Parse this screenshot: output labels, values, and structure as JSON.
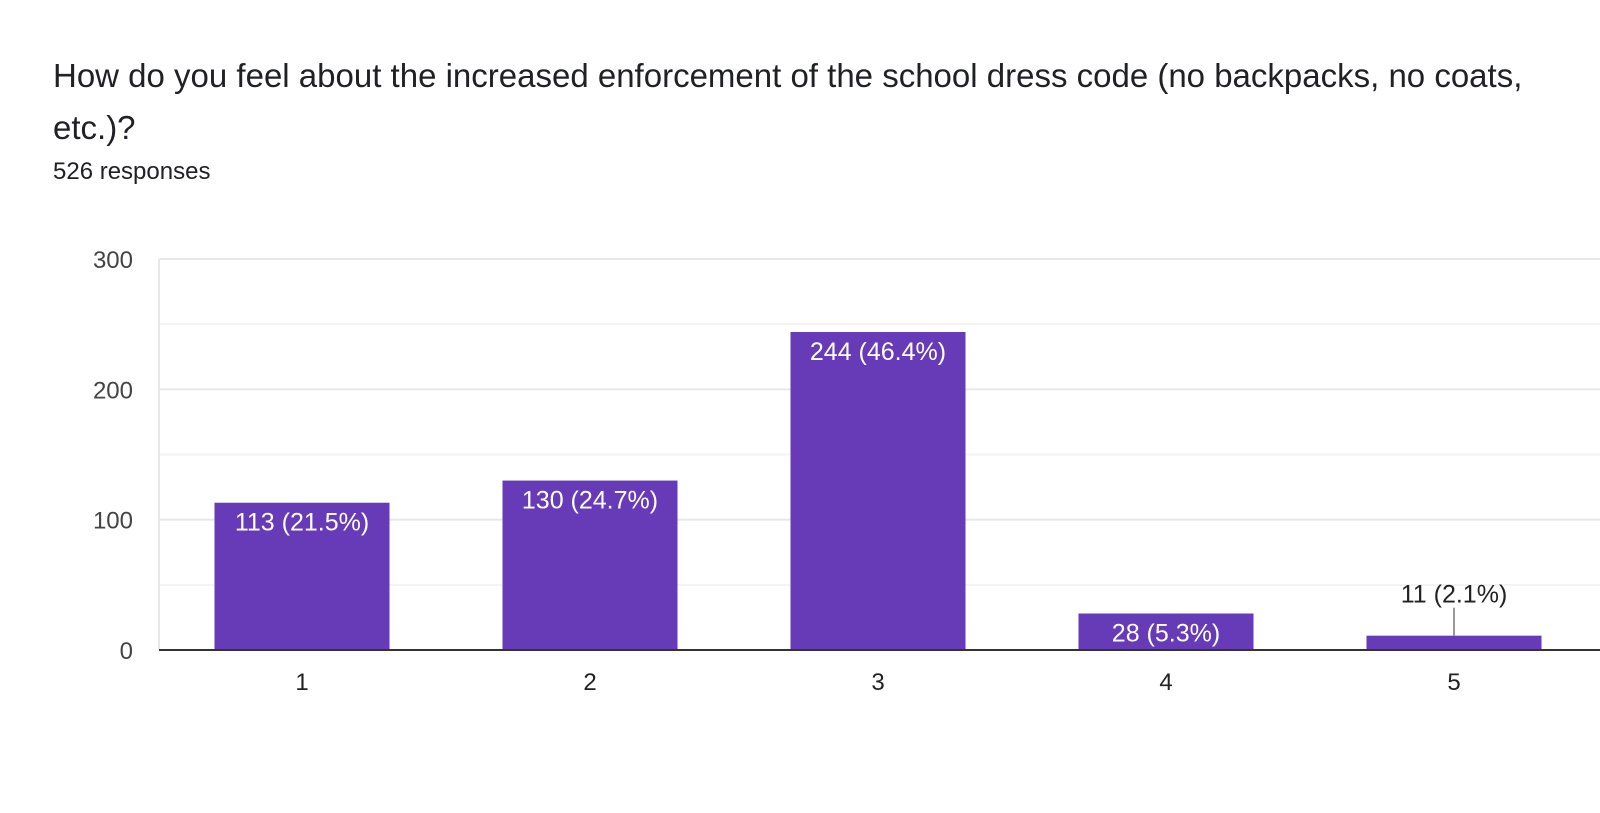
{
  "question": {
    "title": "How do you feel about the increased enforcement of the school dress code (no backpacks, no coats, etc.)?",
    "responses": "526 responses"
  },
  "colors": {
    "bar": "#673ab7",
    "grid": "#e8e8e8",
    "axis": "#333333"
  },
  "chart_data": {
    "type": "bar",
    "title": "How do you feel about the increased enforcement of the school dress code (no backpacks, no coats, etc.)?",
    "xlabel": "",
    "ylabel": "",
    "categories": [
      "1",
      "2",
      "3",
      "4",
      "5"
    ],
    "values": [
      113,
      130,
      244,
      28,
      11
    ],
    "labels": [
      "113 (21.5%)",
      "130 (24.7%)",
      "244 (46.4%)",
      "28 (5.3%)",
      "11 (2.1%)"
    ],
    "yticks": [
      0,
      100,
      200,
      300
    ],
    "ylim": [
      0,
      300
    ],
    "grid": true
  }
}
